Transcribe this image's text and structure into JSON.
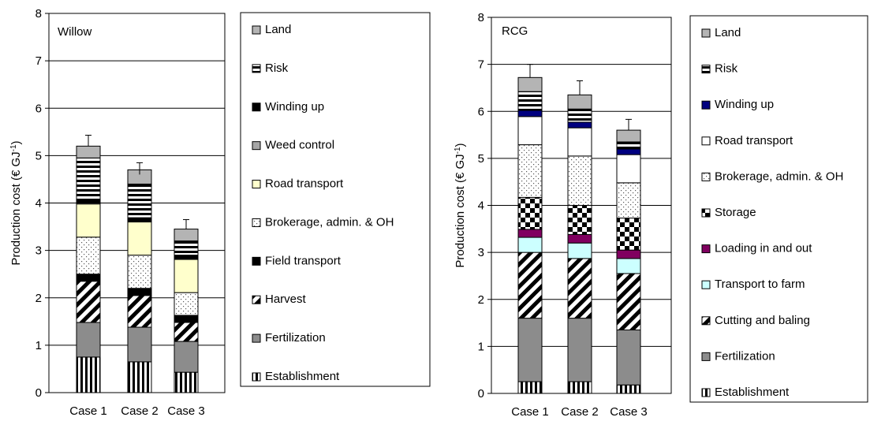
{
  "chart_data": [
    {
      "type": "bar",
      "stacked": true,
      "title": "Willow",
      "ylabel": "Production cost (€ GJ",
      "ylabel_sup": "-1",
      "ylabel_close": ")",
      "ylim": [
        0,
        8
      ],
      "yticks": [
        "0",
        "1",
        "2",
        "3",
        "4",
        "5",
        "6",
        "7",
        "8"
      ],
      "grid": true,
      "legend_position": "right",
      "categories": [
        "Case 1",
        "Case 2",
        "Case 3"
      ],
      "totals": [
        5.2,
        4.6,
        3.45
      ],
      "error_bar_tops": [
        5.43,
        4.85,
        3.65
      ],
      "series": [
        {
          "name": "Establishment",
          "pattern": "vstripes",
          "values": [
            0.75,
            0.65,
            0.43
          ]
        },
        {
          "name": "Fertilization",
          "pattern": "gray",
          "values": [
            0.73,
            0.73,
            0.65
          ]
        },
        {
          "name": "Harvest",
          "pattern": "diag",
          "values": [
            0.87,
            0.67,
            0.4
          ]
        },
        {
          "name": "Field transport",
          "pattern": "black",
          "values": [
            0.15,
            0.15,
            0.15
          ]
        },
        {
          "name": "Brokerage, admin. & OH",
          "pattern": "dots",
          "values": [
            0.78,
            0.7,
            0.48
          ]
        },
        {
          "name": "Road transport",
          "pattern": "yellow",
          "values": [
            0.7,
            0.7,
            0.7
          ]
        },
        {
          "name": "Weed control",
          "pattern": "gray2",
          "values": [
            0.02,
            0.02,
            0.02
          ]
        },
        {
          "name": "Winding up",
          "pattern": "black",
          "values": [
            0.07,
            0.07,
            0.07
          ]
        },
        {
          "name": "Risk",
          "pattern": "hstripes",
          "values": [
            0.88,
            0.71,
            0.3
          ]
        },
        {
          "name": "Land",
          "pattern": "lightgray",
          "values": [
            0.25,
            0.3,
            0.25
          ]
        }
      ],
      "legend_order": [
        "Land",
        "Risk",
        "Winding up",
        "Weed control",
        "Road transport",
        "Brokerage, admin. & OH",
        "Field transport",
        "Harvest",
        "Fertilization",
        "Establishment"
      ]
    },
    {
      "type": "bar",
      "stacked": true,
      "title": "RCG",
      "ylabel": "Production cost (€ GJ",
      "ylabel_sup": "-1",
      "ylabel_close": ")",
      "ylim": [
        0,
        8
      ],
      "yticks": [
        "0",
        "1",
        "2",
        "3",
        "4",
        "5",
        "6",
        "7",
        "8"
      ],
      "grid": true,
      "legend_position": "right",
      "categories": [
        "Case 1",
        "Case 2",
        "Case 3"
      ],
      "totals": [
        6.72,
        6.35,
        5.6
      ],
      "error_bar_tops": [
        7.0,
        6.65,
        5.83
      ],
      "series": [
        {
          "name": "Establishment",
          "pattern": "vstripes",
          "values": [
            0.25,
            0.25,
            0.18
          ]
        },
        {
          "name": "Fertilization",
          "pattern": "gray",
          "values": [
            1.35,
            1.35,
            1.17
          ]
        },
        {
          "name": "Cutting and baling",
          "pattern": "diag",
          "values": [
            1.4,
            1.27,
            1.2
          ]
        },
        {
          "name": "Transport to farm",
          "pattern": "cyan",
          "values": [
            0.32,
            0.33,
            0.32
          ]
        },
        {
          "name": "Loading in and out",
          "pattern": "purple",
          "values": [
            0.17,
            0.18,
            0.18
          ]
        },
        {
          "name": "Storage",
          "pattern": "checker",
          "values": [
            0.68,
            0.62,
            0.68
          ]
        },
        {
          "name": "Brokerage, admin. & OH",
          "pattern": "dots",
          "values": [
            1.12,
            1.05,
            0.75
          ]
        },
        {
          "name": "Road transport",
          "pattern": "white",
          "values": [
            0.6,
            0.6,
            0.6
          ]
        },
        {
          "name": "Winding up",
          "pattern": "navy",
          "values": [
            0.13,
            0.12,
            0.12
          ]
        },
        {
          "name": "Risk",
          "pattern": "hstripes",
          "values": [
            0.4,
            0.28,
            0.15
          ]
        },
        {
          "name": "Land",
          "pattern": "lightgray",
          "values": [
            0.3,
            0.3,
            0.25
          ]
        }
      ],
      "legend_order": [
        "Land",
        "Risk",
        "Winding up",
        "Road transport",
        "Brokerage, admin. & OH",
        "Storage",
        "Loading in and out",
        "Transport to farm",
        "Cutting and baling",
        "Fertilization",
        "Establishment"
      ]
    }
  ]
}
